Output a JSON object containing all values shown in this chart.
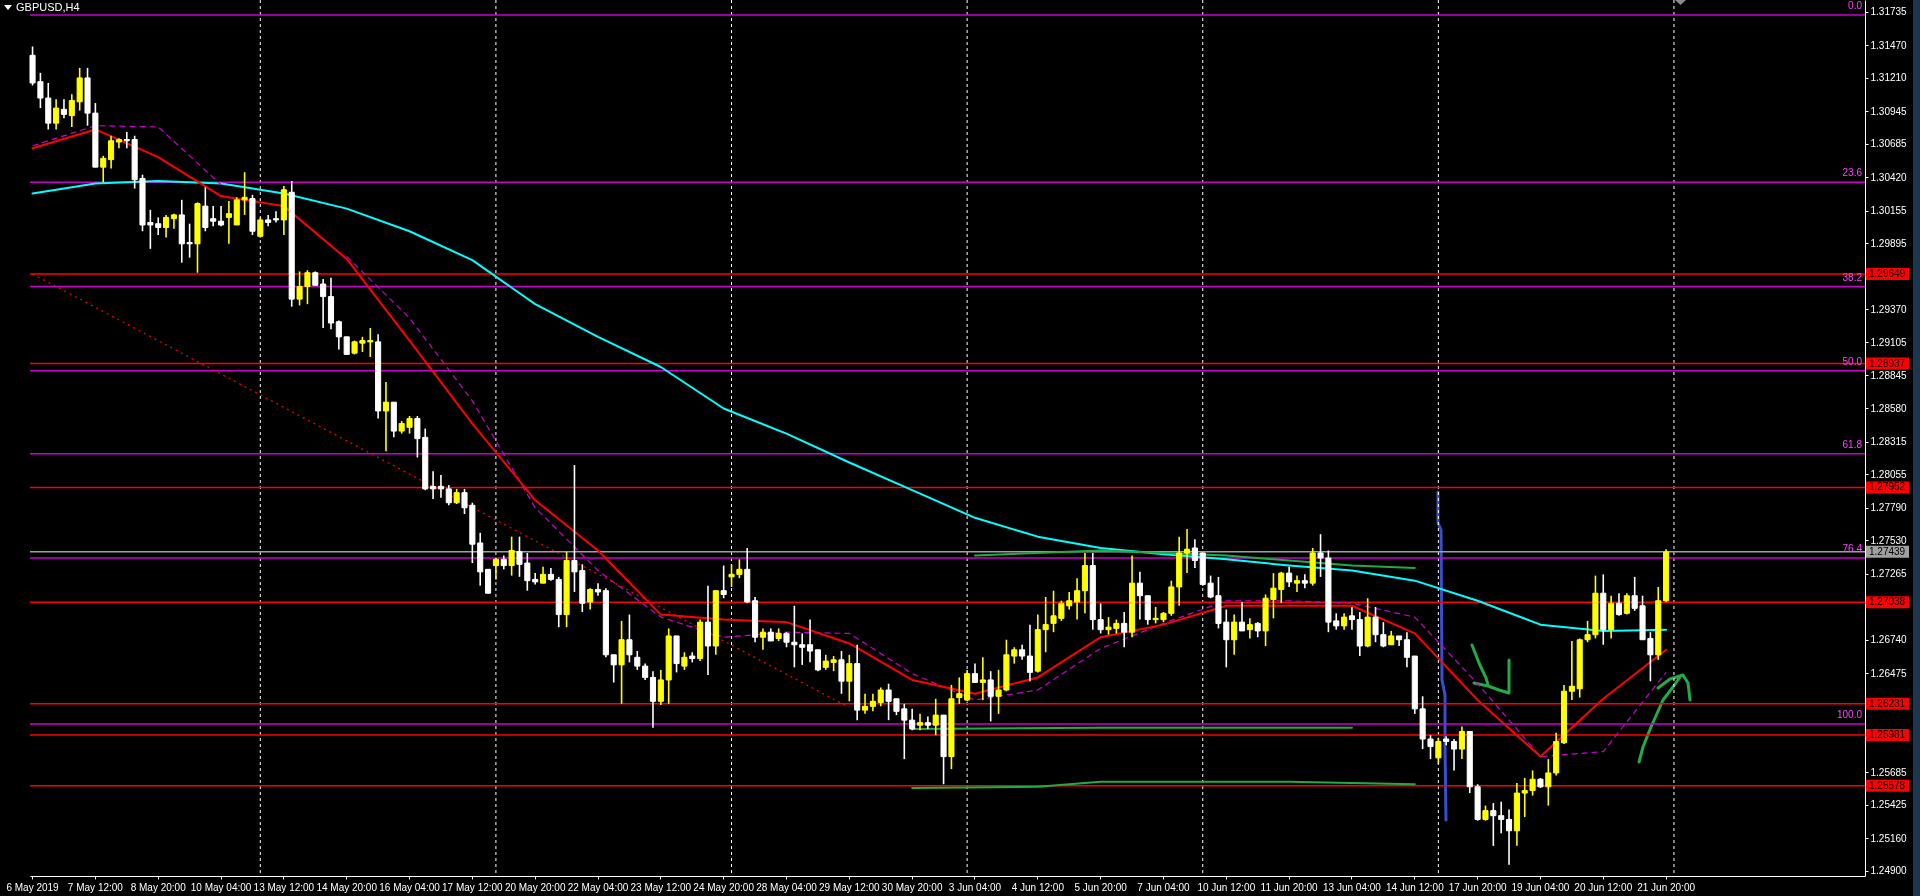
{
  "chart_data": {
    "type": "candlestick",
    "title": "GBPUSD,H4",
    "categories": [
      "6 May 2019",
      null,
      null,
      null,
      null,
      null,
      null,
      null,
      "7 May 12:00",
      null,
      null,
      null,
      null,
      null,
      null,
      null,
      "8 May 20:00",
      null,
      null,
      null,
      null,
      null,
      null,
      null,
      "10 May 04:00",
      null,
      null,
      null,
      null,
      null,
      null,
      null,
      "13 May 12:00",
      null,
      null,
      null,
      null,
      null,
      null,
      null,
      "14 May 20:00",
      null,
      null,
      null,
      null,
      null,
      null,
      null,
      "16 May 04:00",
      null,
      null,
      null,
      null,
      null,
      null,
      null,
      "17 May 12:00",
      null,
      null,
      null,
      null,
      null,
      null,
      null,
      "20 May 20:00",
      null,
      null,
      null,
      null,
      null,
      null,
      null,
      "22 May 04:00",
      null,
      null,
      null,
      null,
      null,
      null,
      null,
      "23 May 12:00",
      null,
      null,
      null,
      null,
      null,
      null,
      null,
      "24 May 20:00",
      null,
      null,
      null,
      null,
      null,
      null,
      null,
      "28 May 04:00",
      null,
      null,
      null,
      null,
      null,
      null,
      null,
      "29 May 12:00",
      null,
      null,
      null,
      null,
      null,
      null,
      null,
      "30 May 20:00",
      null,
      null,
      null,
      null,
      null,
      null,
      null,
      "3 Jun 04:00",
      null,
      null,
      null,
      null,
      null,
      null,
      null,
      "4 Jun 12:00",
      null,
      null,
      null,
      null,
      null,
      null,
      null,
      "5 Jun 20:00",
      null,
      null,
      null,
      null,
      null,
      null,
      null,
      "7 Jun 04:00",
      null,
      null,
      null,
      null,
      null,
      null,
      null,
      "10 Jun 12:00",
      null,
      null,
      null,
      null,
      null,
      null,
      null,
      "11 Jun 20:00",
      null,
      null,
      null,
      null,
      null,
      null,
      null,
      "13 Jun 04:00",
      null,
      null,
      null,
      null,
      null,
      null,
      null,
      "14 Jun 12:00",
      null,
      null,
      null,
      null,
      null,
      null,
      null,
      "17 Jun 20:00",
      null,
      null,
      null,
      null,
      null,
      null,
      null,
      "19 Jun 04:00",
      null,
      null,
      null,
      null,
      null,
      null,
      null,
      "20 Jun 12:00",
      null,
      null,
      null,
      null,
      null,
      null,
      null,
      "21 Jun 20:00",
      null,
      null,
      null,
      null,
      null,
      null,
      null,
      null,
      null,
      null,
      null,
      null,
      null,
      null,
      null,
      null,
      null,
      null,
      null,
      null,
      null,
      null,
      null,
      null,
      null
    ],
    "ohlc": [
      [
        1.3139,
        1.3146,
        1.3115,
        1.3117
      ],
      [
        1.3118,
        1.3125,
        1.3097,
        1.3105
      ],
      [
        1.3105,
        1.3117,
        1.308,
        1.3085
      ],
      [
        1.3085,
        1.3104,
        1.308,
        1.3097
      ],
      [
        1.3096,
        1.3104,
        1.3089,
        1.3092
      ],
      [
        1.3091,
        1.3108,
        1.3082,
        1.3103
      ],
      [
        1.3102,
        1.3129,
        1.3095,
        1.3121
      ],
      [
        1.3121,
        1.3129,
        1.3083,
        1.3093
      ],
      [
        1.3093,
        1.3101,
        1.305,
        1.305
      ],
      [
        1.305,
        1.3059,
        1.3038,
        1.3057
      ],
      [
        1.3056,
        1.3075,
        1.3049,
        1.3071
      ],
      [
        1.307,
        1.3073,
        1.3065,
        1.3072
      ],
      [
        1.3072,
        1.3078,
        1.3065,
        1.3071
      ],
      [
        1.3072,
        1.3075,
        1.3033,
        1.304
      ],
      [
        1.3041,
        1.3044,
        1.2999,
        1.3004
      ],
      [
        1.3006,
        1.3016,
        1.2985,
        1.3004
      ],
      [
        1.3005,
        1.301,
        1.2996,
        1.3002
      ],
      [
        1.3002,
        1.3012,
        1.2994,
        1.301
      ],
      [
        1.3009,
        1.3013,
        1.3001,
        1.3012
      ],
      [
        1.3012,
        1.3024,
        1.2974,
        1.2989
      ],
      [
        1.299,
        1.3005,
        1.2978,
        1.2989
      ],
      [
        1.2989,
        1.3022,
        1.2966,
        1.3021
      ],
      [
        1.3019,
        1.3034,
        1.2999,
        1.3002
      ],
      [
        1.3009,
        1.3019,
        1.3003,
        1.3007
      ],
      [
        1.3007,
        1.3019,
        1.3003,
        1.3004
      ],
      [
        1.301,
        1.3023,
        1.2989,
        1.3013
      ],
      [
        1.3004,
        1.3026,
        1.3004,
        1.3024
      ],
      [
        1.3024,
        1.3046,
        1.3012,
        1.3026
      ],
      [
        1.3025,
        1.3028,
        1.2996,
        1.2999
      ],
      [
        1.2995,
        1.301,
        1.2994,
        1.3008
      ],
      [
        1.3008,
        1.3012,
        1.3003,
        1.3006
      ],
      [
        1.3009,
        1.3015,
        1.3006,
        1.3008
      ],
      [
        1.3008,
        1.3035,
        1.2996,
        1.3032
      ],
      [
        1.303,
        1.3039,
        1.2939,
        1.2945
      ],
      [
        1.2945,
        1.2967,
        1.294,
        1.2955
      ],
      [
        1.2955,
        1.2968,
        1.2941,
        1.2966
      ],
      [
        1.2966,
        1.2967,
        1.2956,
        1.2956
      ],
      [
        1.2957,
        1.2961,
        1.2922,
        1.2947
      ],
      [
        1.2947,
        1.2962,
        1.2921,
        1.2926
      ],
      [
        1.2927,
        1.2928,
        1.2905,
        1.2915
      ],
      [
        1.2915,
        1.2915,
        1.2901,
        1.2901
      ],
      [
        1.2902,
        1.2912,
        1.2901,
        1.2911
      ],
      [
        1.291,
        1.2915,
        1.2903,
        1.2912
      ],
      [
        1.2911,
        1.2922,
        1.2899,
        1.2912
      ],
      [
        1.2911,
        1.2917,
        1.285,
        1.2856
      ],
      [
        1.2856,
        1.2879,
        1.2824,
        1.2863
      ],
      [
        1.2863,
        1.2863,
        1.2835,
        1.284
      ],
      [
        1.284,
        1.2848,
        1.2838,
        1.2846
      ],
      [
        1.2843,
        1.2852,
        1.2838,
        1.285
      ],
      [
        1.285,
        1.2852,
        1.2819,
        1.2834
      ],
      [
        1.2835,
        1.2842,
        1.2793,
        1.2794
      ],
      [
        1.2796,
        1.2808,
        1.2786,
        1.2794
      ],
      [
        1.2796,
        1.2805,
        1.2787,
        1.2794
      ],
      [
        1.2794,
        1.2797,
        1.2781,
        1.2783
      ],
      [
        1.2783,
        1.2794,
        1.2782,
        1.2791
      ],
      [
        1.2791,
        1.2794,
        1.2774,
        1.2779
      ],
      [
        1.2781,
        1.2783,
        1.2735,
        1.275
      ],
      [
        1.2751,
        1.2759,
        1.2717,
        1.2728
      ],
      [
        1.273,
        1.273,
        1.2711,
        1.2711
      ],
      [
        1.2733,
        1.2739,
        1.2722,
        1.2738
      ],
      [
        1.2738,
        1.2741,
        1.273,
        1.2733
      ],
      [
        1.2733,
        1.2756,
        1.2725,
        1.2745
      ],
      [
        1.2744,
        1.2756,
        1.2724,
        1.2734
      ],
      [
        1.2735,
        1.2743,
        1.2713,
        1.2721
      ],
      [
        1.2722,
        1.2727,
        1.2718,
        1.272
      ],
      [
        1.2719,
        1.2732,
        1.2719,
        1.2726
      ],
      [
        1.2726,
        1.2731,
        1.2721,
        1.2722
      ],
      [
        1.2722,
        1.2724,
        1.2684,
        1.2694
      ],
      [
        1.2694,
        1.2744,
        1.2684,
        1.2737
      ],
      [
        1.2737,
        1.2813,
        1.2712,
        1.2728
      ],
      [
        1.2729,
        1.2734,
        1.2696,
        1.2703
      ],
      [
        1.2704,
        1.2715,
        1.2698,
        1.2714
      ],
      [
        1.2714,
        1.2719,
        1.2709,
        1.2712
      ],
      [
        1.2713,
        1.2715,
        1.266,
        1.2662
      ],
      [
        1.2662,
        1.2662,
        1.264,
        1.2654
      ],
      [
        1.2654,
        1.2689,
        1.2623,
        1.2674
      ],
      [
        1.2674,
        1.2694,
        1.2656,
        1.2662
      ],
      [
        1.266,
        1.2665,
        1.265,
        1.2653
      ],
      [
        1.2653,
        1.2655,
        1.2642,
        1.2644
      ],
      [
        1.2644,
        1.2649,
        1.2604,
        1.2625
      ],
      [
        1.2625,
        1.265,
        1.2622,
        1.2642
      ],
      [
        1.2642,
        1.2683,
        1.2623,
        1.2677
      ],
      [
        1.2677,
        1.2677,
        1.2648,
        1.2655
      ],
      [
        1.2653,
        1.2664,
        1.265,
        1.266
      ],
      [
        1.2661,
        1.2664,
        1.2656,
        1.2659
      ],
      [
        1.2659,
        1.269,
        1.2657,
        1.2688
      ],
      [
        1.2688,
        1.2717,
        1.2646,
        1.2669
      ],
      [
        1.2669,
        1.2713,
        1.2662,
        1.2713
      ],
      [
        1.2713,
        1.2733,
        1.2707,
        1.271
      ],
      [
        1.2724,
        1.2734,
        1.2716,
        1.2726
      ],
      [
        1.2726,
        1.2738,
        1.2723,
        1.273
      ],
      [
        1.273,
        1.2747,
        1.2703,
        1.2704
      ],
      [
        1.2705,
        1.2708,
        1.2672,
        1.2676
      ],
      [
        1.2676,
        1.2683,
        1.2666,
        1.268
      ],
      [
        1.268,
        1.2683,
        1.2673,
        1.2673
      ],
      [
        1.2675,
        1.2683,
        1.2673,
        1.2679
      ],
      [
        1.2679,
        1.268,
        1.2668,
        1.2672
      ],
      [
        1.2672,
        1.2701,
        1.2652,
        1.267
      ],
      [
        1.267,
        1.2679,
        1.2654,
        1.2668
      ],
      [
        1.267,
        1.269,
        1.2656,
        1.2665
      ],
      [
        1.2666,
        1.2666,
        1.2649,
        1.265
      ],
      [
        1.2652,
        1.2662,
        1.265,
        1.2657
      ],
      [
        1.2656,
        1.2661,
        1.2649,
        1.2658
      ],
      [
        1.2658,
        1.2665,
        1.2631,
        1.2641
      ],
      [
        1.2641,
        1.2662,
        1.2625,
        1.2655
      ],
      [
        1.2655,
        1.267,
        1.261,
        1.2618
      ],
      [
        1.2618,
        1.2631,
        1.2615,
        1.2621
      ],
      [
        1.2621,
        1.2631,
        1.2617,
        1.2625
      ],
      [
        1.2624,
        1.2636,
        1.2621,
        1.2634
      ],
      [
        1.2634,
        1.2639,
        1.261,
        1.2625
      ],
      [
        1.2627,
        1.2627,
        1.2614,
        1.2617
      ],
      [
        1.2619,
        1.2623,
        1.2579,
        1.261
      ],
      [
        1.261,
        1.2619,
        1.2602,
        1.2603
      ],
      [
        1.2606,
        1.2615,
        1.2602,
        1.2608
      ],
      [
        1.2608,
        1.2613,
        1.2603,
        1.2606
      ],
      [
        1.2606,
        1.2627,
        1.2598,
        1.2614
      ],
      [
        1.2614,
        1.2614,
        1.2559,
        1.2581
      ],
      [
        1.2581,
        1.2638,
        1.2571,
        1.2627
      ],
      [
        1.2628,
        1.2644,
        1.2623,
        1.2631
      ],
      [
        1.2626,
        1.265,
        1.2625,
        1.2647
      ],
      [
        1.2647,
        1.2655,
        1.264,
        1.264
      ],
      [
        1.264,
        1.266,
        1.2626,
        1.2642
      ],
      [
        1.2642,
        1.2649,
        1.2609,
        1.2629
      ],
      [
        1.2629,
        1.265,
        1.2615,
        1.2634
      ],
      [
        1.2634,
        1.2674,
        1.2633,
        1.2662
      ],
      [
        1.2661,
        1.2668,
        1.2655,
        1.2666
      ],
      [
        1.2666,
        1.267,
        1.2658,
        1.2661
      ],
      [
        1.2661,
        1.2686,
        1.2641,
        1.2648
      ],
      [
        1.2649,
        1.2694,
        1.2648,
        1.2682
      ],
      [
        1.2682,
        1.2708,
        1.2664,
        1.2686
      ],
      [
        1.2687,
        1.2713,
        1.268,
        1.2693
      ],
      [
        1.2691,
        1.2705,
        1.2689,
        1.2703
      ],
      [
        1.2701,
        1.2712,
        1.2698,
        1.2705
      ],
      [
        1.2704,
        1.2723,
        1.269,
        1.2713
      ],
      [
        1.2713,
        1.2743,
        1.2695,
        1.2733
      ],
      [
        1.2733,
        1.2743,
        1.2682,
        1.269
      ],
      [
        1.269,
        1.2703,
        1.2679,
        1.2682
      ],
      [
        1.2682,
        1.2692,
        1.2678,
        1.2684
      ],
      [
        1.2683,
        1.269,
        1.2679,
        1.2687
      ],
      [
        1.2687,
        1.2696,
        1.2668,
        1.268
      ],
      [
        1.268,
        1.2741,
        1.2676,
        1.2719
      ],
      [
        1.2719,
        1.2728,
        1.269,
        1.2709
      ],
      [
        1.2709,
        1.2709,
        1.2686,
        1.269
      ],
      [
        1.269,
        1.27,
        1.2687,
        1.2691
      ],
      [
        1.269,
        1.2696,
        1.2688,
        1.2695
      ],
      [
        1.2695,
        1.2721,
        1.2693,
        1.2716
      ],
      [
        1.2716,
        1.2756,
        1.2701,
        1.2743
      ],
      [
        1.2743,
        1.2762,
        1.2727,
        1.2746
      ],
      [
        1.2747,
        1.2754,
        1.2731,
        1.2737
      ],
      [
        1.2743,
        1.2743,
        1.2717,
        1.2718
      ],
      [
        1.2719,
        1.2725,
        1.2707,
        1.2708
      ],
      [
        1.2709,
        1.2724,
        1.2683,
        1.2687
      ],
      [
        1.2688,
        1.2698,
        1.2652,
        1.2674
      ],
      [
        1.2674,
        1.2694,
        1.2662,
        1.2688
      ],
      [
        1.2688,
        1.2704,
        1.2681,
        1.2681
      ],
      [
        1.2682,
        1.2691,
        1.2675,
        1.2686
      ],
      [
        1.2687,
        1.2688,
        1.2676,
        1.2681
      ],
      [
        1.2681,
        1.271,
        1.2669,
        1.2707
      ],
      [
        1.2706,
        1.2727,
        1.2691,
        1.2715
      ],
      [
        1.2714,
        1.2728,
        1.2703,
        1.2727
      ],
      [
        1.2727,
        1.2732,
        1.2716,
        1.272
      ],
      [
        1.2719,
        1.2725,
        1.2712,
        1.2721
      ],
      [
        1.2721,
        1.2726,
        1.2715,
        1.2719
      ],
      [
        1.2719,
        1.2747,
        1.2717,
        1.2743
      ],
      [
        1.2743,
        1.2758,
        1.2724,
        1.2739
      ],
      [
        1.2739,
        1.2745,
        1.268,
        1.2688
      ],
      [
        1.2689,
        1.2695,
        1.2682,
        1.2685
      ],
      [
        1.2685,
        1.2695,
        1.2682,
        1.2692
      ],
      [
        1.2693,
        1.27,
        1.2682,
        1.269
      ],
      [
        1.269,
        1.2696,
        1.2661,
        1.2669
      ],
      [
        1.2669,
        1.2707,
        1.2668,
        1.2692
      ],
      [
        1.2692,
        1.27,
        1.2672,
        1.2678
      ],
      [
        1.2678,
        1.2688,
        1.2668,
        1.2669
      ],
      [
        1.267,
        1.2681,
        1.267,
        1.2677
      ],
      [
        1.2677,
        1.2677,
        1.2669,
        1.2674
      ],
      [
        1.2674,
        1.268,
        1.2652,
        1.266
      ],
      [
        1.2661,
        1.2661,
        1.2615,
        1.2619
      ],
      [
        1.2619,
        1.2629,
        1.2587,
        1.2595
      ],
      [
        1.2595,
        1.2598,
        1.2579,
        1.2589
      ],
      [
        1.258,
        1.2596,
        1.2575,
        1.2593
      ],
      [
        1.2595,
        1.2597,
        1.259,
        1.2593
      ],
      [
        1.2593,
        1.2595,
        1.257,
        1.2587
      ],
      [
        1.2587,
        1.2605,
        1.2579,
        1.2601
      ],
      [
        1.2601,
        1.2601,
        1.2552,
        1.2557
      ],
      [
        1.2557,
        1.2559,
        1.253,
        1.2531
      ],
      [
        1.2531,
        1.2542,
        1.253,
        1.2538
      ],
      [
        1.2538,
        1.2544,
        1.251,
        1.2534
      ],
      [
        1.2534,
        1.2545,
        1.252,
        1.2531
      ],
      [
        1.2531,
        1.2539,
        1.2495,
        1.2522
      ],
      [
        1.2522,
        1.256,
        1.251,
        1.2552
      ],
      [
        1.2552,
        1.2564,
        1.2533,
        1.2554
      ],
      [
        1.2554,
        1.257,
        1.255,
        1.2563
      ],
      [
        1.2563,
        1.2564,
        1.2556,
        1.2557
      ],
      [
        1.2557,
        1.2579,
        1.2542,
        1.2568
      ],
      [
        1.2568,
        1.26,
        1.2566,
        1.2593
      ],
      [
        1.2592,
        1.2638,
        1.2591,
        1.2633
      ],
      [
        1.2633,
        1.2673,
        1.2626,
        1.2637
      ],
      [
        1.2635,
        1.2675,
        1.2628,
        1.2674
      ],
      [
        1.2674,
        1.2689,
        1.2672,
        1.2678
      ],
      [
        1.2678,
        1.2725,
        1.2675,
        1.2711
      ],
      [
        1.2711,
        1.2726,
        1.267,
        1.2682
      ],
      [
        1.2682,
        1.2709,
        1.2675,
        1.2703
      ],
      [
        1.2703,
        1.2711,
        1.2693,
        1.2694
      ],
      [
        1.2695,
        1.2711,
        1.2694,
        1.2709
      ],
      [
        1.2709,
        1.2724,
        1.2697,
        1.2699
      ],
      [
        1.2701,
        1.2709,
        1.2674,
        1.2674
      ],
      [
        1.2675,
        1.268,
        1.2641,
        1.2662
      ],
      [
        1.2662,
        1.2716,
        1.2658,
        1.2705
      ],
      [
        1.2705,
        1.2746,
        1.2704,
        1.27439
      ],
      null,
      null,
      null,
      null,
      null,
      null,
      null,
      null,
      null,
      null,
      null,
      null,
      null,
      null,
      null,
      null,
      null,
      null,
      null,
      null,
      null,
      null,
      null,
      null,
      null
    ],
    "colors": [
      "#ffffff",
      "#ffffff",
      "#ffffff",
      "#ffff00",
      "#ffffff",
      "#ffff00",
      "#ffff00",
      "#ffffff",
      "#ffffff",
      "#ffff00",
      "#ffff00",
      "#ffff00",
      "#ffffff",
      "#ffffff",
      "#ffffff",
      "#ffffff",
      "#ffffff",
      "#ffff00",
      "#ffff00",
      "#ffffff",
      "#ffffff",
      "#ffff00",
      "#ffffff",
      "#ffffff",
      "#ffffff",
      "#ffff00",
      "#ffff00",
      "#ffff00",
      "#ffffff",
      "#ffff00",
      "#ffffff",
      "#ffffff",
      "#ffff00",
      "#ffffff",
      "#ffff00",
      "#ffff00",
      "#ffffff",
      "#ffffff",
      "#ffffff",
      "#ffffff",
      "#ffffff",
      "#ffff00",
      "#ffff00",
      "#ffff00",
      "#ffffff",
      "#ffff00",
      "#ffffff",
      "#ffff00",
      "#ffff00",
      "#ffffff",
      "#ffffff",
      "#ffffff",
      "#ffffff",
      "#ffffff",
      "#ffff00",
      "#ffffff",
      "#ffffff",
      "#ffffff",
      "#ffffff",
      "#ffff00",
      "#ffffff",
      "#ffff00",
      "#ffffff",
      "#ffffff",
      "#ffffff",
      "#ffff00",
      "#ffffff",
      "#ffffff",
      "#ffff00",
      "#ffffff",
      "#ffffff",
      "#ffff00",
      "#ffffff",
      "#ffffff",
      "#ffffff",
      "#ffff00",
      "#ffffff",
      "#ffffff",
      "#ffffff",
      "#ffffff",
      "#ffff00",
      "#ffff00",
      "#ffffff",
      "#ffff00",
      "#ffffff",
      "#ffff00",
      "#ffffff",
      "#ffff00",
      "#ffffff",
      "#ffff00",
      "#ffff00",
      "#ffffff",
      "#ffffff",
      "#ffff00",
      "#ffffff",
      "#ffff00",
      "#ffffff",
      "#ffffff",
      "#ffffff",
      "#ffffff",
      "#ffffff",
      "#ffff00",
      "#ffff00",
      "#ffffff",
      "#ffff00",
      "#ffffff",
      "#ffff00",
      "#ffff00",
      "#ffff00",
      "#ffffff",
      "#ffffff",
      "#ffffff",
      "#ffffff",
      "#ffff00",
      "#ffffff",
      "#ffff00",
      "#ffffff",
      "#ffff00",
      "#ffff00",
      "#ffff00",
      "#ffffff",
      "#ffff00",
      "#ffffff",
      "#ffff00",
      "#ffff00",
      "#ffff00",
      "#ffffff",
      "#ffffff",
      "#ffff00",
      "#ffff00",
      "#ffff00",
      "#ffff00",
      "#ffff00",
      "#ffff00",
      "#ffff00",
      "#ffffff",
      "#ffffff",
      "#ffff00",
      "#ffff00",
      "#ffffff",
      "#ffff00",
      "#ffffff",
      "#ffffff",
      "#ffff00",
      "#ffff00",
      "#ffff00",
      "#ffff00",
      "#ffff00",
      "#ffffff",
      "#ffffff",
      "#ffffff",
      "#ffffff",
      "#ffffff",
      "#ffff00",
      "#ffffff",
      "#ffff00",
      "#ffffff",
      "#ffff00",
      "#ffff00",
      "#ffff00",
      "#ffffff",
      "#ffff00",
      "#ffffff",
      "#ffff00",
      "#ffffff",
      "#ffffff",
      "#ffffff",
      "#ffff00",
      "#ffffff",
      "#ffffff",
      "#ffff00",
      "#ffffff",
      "#ffffff",
      "#ffff00",
      "#ffffff",
      "#ffffff",
      "#ffffff",
      "#ffffff",
      "#ffffff",
      "#ffff00",
      "#ffffff",
      "#ffffff",
      "#ffff00",
      "#ffffff",
      "#ffffff",
      "#ffff00",
      "#ffffff",
      "#ffffff",
      "#ffffff",
      "#ffff00",
      "#ffff00",
      "#ffff00",
      "#ffffff",
      "#ffff00",
      "#ffff00",
      "#ffff00",
      "#ffff00",
      "#ffff00",
      "#ffff00",
      "#ffff00",
      "#ffffff",
      "#ffff00",
      "#ffffff",
      "#ffff00",
      "#ffffff",
      "#ffffff",
      "#ffffff",
      "#ffff00",
      "#ffff00",
      null,
      null,
      null,
      null,
      null,
      null,
      null,
      null,
      null,
      null,
      null,
      null,
      null,
      null,
      null,
      null,
      null,
      null,
      null,
      null,
      null,
      null,
      null,
      null,
      null
    ],
    "series": [
      {
        "type": "line",
        "color": "#00ffff",
        "x": [
          "6 May 2019",
          "7 May 12:00",
          "8 May 20:00",
          "10 May 04:00",
          "13 May 12:00",
          "14 May 20:00",
          "16 May 04:00",
          "17 May 12:00",
          "20 May 20:00",
          "22 May 04:00",
          "23 May 12:00",
          "24 May 20:00",
          "28 May 04:00",
          "29 May 12:00",
          "30 May 20:00",
          "3 Jun 04:00",
          "4 Jun 12:00",
          "5 Jun 20:00",
          "7 Jun 04:00",
          "10 Jun 12:00",
          "11 Jun 20:00",
          "13 Jun 04:00",
          "14 Jun 12:00",
          "17 Jun 20:00",
          "19 Jun 04:00",
          "20 Jun 12:00",
          "21 Jun 20:00"
        ],
        "values": [
          1.3029,
          1.3037,
          1.3039,
          1.3037,
          1.3029,
          1.3017,
          1.2999,
          1.2976,
          1.2941,
          1.2915,
          1.2891,
          1.2858,
          1.2838,
          1.2815,
          1.2793,
          1.2771,
          1.2756,
          1.2747,
          1.2742,
          1.2738,
          1.2733,
          1.2729,
          1.2721,
          1.2705,
          1.2686,
          1.2681,
          1.2682
        ]
      },
      {
        "type": "line",
        "color": "#cc00cc",
        "line_style": "dashed",
        "x": [
          "6 May 2019",
          "7 May 12:00",
          "8 May 20:00",
          "10 May 04:00",
          "13 May 12:00",
          "14 May 20:00",
          "16 May 04:00",
          "17 May 12:00",
          "20 May 20:00",
          "22 May 04:00",
          "23 May 12:00",
          "24 May 20:00",
          "28 May 04:00",
          "29 May 12:00",
          "30 May 20:00",
          "3 Jun 04:00",
          "4 Jun 12:00",
          "5 Jun 20:00",
          "7 Jun 04:00",
          "10 Jun 12:00",
          "11 Jun 20:00",
          "13 Jun 04:00",
          "14 Jun 12:00",
          "17 Jun 20:00",
          "19 Jun 04:00",
          "20 Jun 12:00",
          "21 Jun 20:00"
        ],
        "values": [
          1.3067,
          1.3083,
          1.3082,
          1.3036,
          null,
          1.2979,
          1.293,
          1.2864,
          1.2779,
          1.2729,
          1.2692,
          1.2676,
          1.268,
          1.2679,
          1.2647,
          1.2626,
          1.2634,
          1.2667,
          1.2687,
          1.2705,
          1.2705,
          1.2703,
          1.2692,
          1.2639,
          1.2581,
          1.2585,
          1.2648
        ]
      },
      {
        "type": "line",
        "color": "#ff0000",
        "x": [
          "6 May 2019",
          "7 May 12:00",
          "8 May 20:00",
          "10 May 04:00",
          "13 May 12:00",
          "14 May 20:00",
          "16 May 04:00",
          "17 May 12:00",
          "20 May 20:00",
          "22 May 04:00",
          "23 May 12:00",
          "24 May 20:00",
          "28 May 04:00",
          "29 May 12:00",
          "30 May 20:00",
          "3 Jun 04:00",
          "4 Jun 12:00",
          "5 Jun 20:00",
          "7 Jun 04:00",
          "10 Jun 12:00",
          "11 Jun 20:00",
          "13 Jun 04:00",
          "14 Jun 12:00",
          "17 Jun 20:00",
          "19 Jun 04:00",
          "20 Jun 12:00",
          "21 Jun 20:00"
        ],
        "values": [
          1.3065,
          1.308,
          1.3058,
          1.3027,
          1.3019,
          1.2977,
          1.2912,
          1.2846,
          1.2785,
          1.2745,
          1.2694,
          1.269,
          1.2688,
          1.2671,
          1.2642,
          1.2631,
          1.2644,
          1.2676,
          1.2686,
          1.2701,
          1.2701,
          1.2701,
          1.2679,
          1.2626,
          1.2581,
          1.2627,
          1.2666
        ]
      },
      {
        "type": "line",
        "color": "#ff0000",
        "line_style": "dotted",
        "x": [
          "6 May 2019",
          "29 May 12:00"
        ],
        "values": [
          1.2965,
          1.262
        ]
      },
      {
        "type": "line",
        "color": "#22aa44",
        "x": [
          "3 Jun 04:00",
          "5 Jun 20:00",
          "10 Jun 12:00",
          "13 Jun 04:00",
          "14 Jun 12:00"
        ],
        "values": [
          1.2741,
          1.2745,
          1.2741,
          1.2733,
          1.2731
        ]
      },
      {
        "type": "line",
        "color": "#22aa44",
        "x": [
          "30 May 20:00",
          "5 Jun 20:00",
          "13 Jun 04:00"
        ],
        "values": [
          1.2603,
          1.2604,
          1.2604
        ]
      },
      {
        "type": "line",
        "color": "#22aa44",
        "x": [
          "30 May 20:00",
          "4 Jun 12:00",
          "5 Jun 20:00",
          "11 Jun 20:00",
          "14 Jun 12:00"
        ],
        "values": [
          1.2556,
          1.2557,
          1.2561,
          1.2561,
          1.2559
        ]
      }
    ],
    "ref_lines": [
      {
        "axis": "y",
        "value": 1.3171,
        "color": "#cc00cc"
      },
      {
        "axis": "y",
        "value": 1.3038,
        "color": "#cc00cc"
      },
      {
        "axis": "y",
        "value": 1.2955,
        "color": "#cc00cc"
      },
      {
        "axis": "y",
        "value": 1.2888,
        "color": "#cc00cc"
      },
      {
        "axis": "y",
        "value": 1.2822,
        "color": "#cc00cc"
      },
      {
        "axis": "y",
        "value": 1.2739,
        "color": "#cc00cc"
      },
      {
        "axis": "y",
        "value": 1.2607,
        "color": "#cc00cc"
      },
      {
        "axis": "y",
        "value": 1.27439,
        "label": "1.27439",
        "color": "#a0a0a0"
      },
      {
        "axis": "y",
        "value": 1.29649,
        "label": "1.29649",
        "color": "#ff0000"
      },
      {
        "axis": "y",
        "value": 1.28937,
        "label": "1.28937",
        "color": "#ff0000"
      },
      {
        "axis": "y",
        "value": 1.27952,
        "label": "1.27952",
        "color": "#ff0000"
      },
      {
        "axis": "y",
        "value": 1.27038,
        "label": "1.27038",
        "color": "#ff0000"
      },
      {
        "axis": "y",
        "value": 1.26231,
        "label": "1.26231",
        "color": "#ff0000"
      },
      {
        "axis": "y",
        "value": 1.25981,
        "label": "1.25981",
        "color": "#ff0000"
      },
      {
        "axis": "y",
        "value": 1.25578,
        "label": "1.25578",
        "color": "#ff0000"
      }
    ],
    "annotations": [
      {
        "text": "0.0",
        "y": 1.3171
      },
      {
        "text": "23.6",
        "y": 1.3038
      },
      {
        "text": "38.2",
        "y": 1.2955
      },
      {
        "text": "50.0",
        "y": 1.2888
      },
      {
        "text": "61.8",
        "y": 1.2822
      },
      {
        "text": "76.4",
        "y": 1.2739
      },
      {
        "text": "100.0",
        "y": 1.2607
      }
    ],
    "ylim": [
      1.2486,
      1.3183
    ],
    "yticks": [
      1.31735,
      {
        "value": 1.3147,
        "label": "1.31470"
      },
      {
        "value": 1.3121,
        "label": "1.31210"
      },
      1.30945,
      1.30685,
      {
        "value": 1.3042,
        "label": "1.30420"
      },
      1.30155,
      1.29895,
      {
        "value": 1.2937,
        "label": "1.29370"
      },
      1.29105,
      1.28845,
      {
        "value": 1.2858,
        "label": "1.28580"
      },
      1.28315,
      1.28055,
      {
        "value": 1.2779,
        "label": "1.27790"
      },
      {
        "value": 1.2753,
        "label": "1.27530"
      },
      1.27265,
      {
        "value": 1.2674,
        "label": "1.26740"
      },
      1.26475,
      1.25685,
      1.25425,
      {
        "value": 1.2516,
        "label": "1.25160"
      },
      {
        "value": 1.249,
        "label": "1.24900"
      }
    ],
    "grid": "x"
  }
}
